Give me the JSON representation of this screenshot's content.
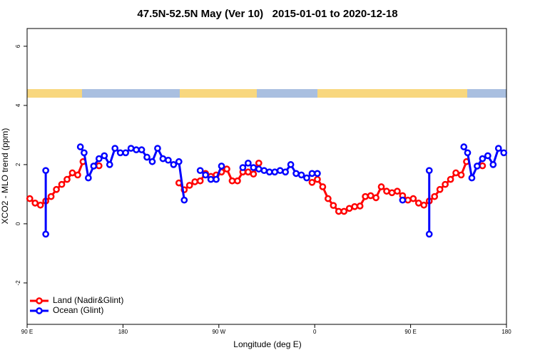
{
  "chart_data": {
    "type": "line",
    "title": "47.5N-52.5N May (Ver 10)   2015-01-01 to 2020-12-18",
    "x_label": "Longitude (deg E)",
    "y_label": "XCO2 - MLO trend (ppm)",
    "xlim": [
      90,
      540
    ],
    "xticks": [
      {
        "value": 90,
        "label": "90 E"
      },
      180,
      {
        "value": 270,
        "label": "90 W"
      },
      {
        "value": 360,
        "label": "0"
      },
      {
        "value": 450,
        "label": "90 E"
      },
      {
        "value": 540,
        "label": "180"
      }
    ],
    "ylim": [
      -3.4,
      6.6
    ],
    "yticks": [
      -2,
      0,
      2,
      4,
      6
    ],
    "legend": "bottom-left",
    "series": [
      {
        "name": "Land (Nadir&Glint)",
        "color": "#ff0000",
        "x": [
          92.5,
          97.5,
          102.5,
          107.5,
          112.5,
          117.5,
          122.5,
          127.5,
          132.5,
          137.5,
          142.5,
          null,
          157.5,
          null,
          232.5,
          237.5,
          242.5,
          247.5,
          252.5,
          257.5,
          262.5,
          267.5,
          272.5,
          277.5,
          282.5,
          287.5,
          292.5,
          297.5,
          302.5,
          307.5,
          null,
          357.5,
          362.5,
          367.5,
          372.5,
          377.5,
          382.5,
          387.5,
          392.5,
          397.5,
          402.5,
          407.5,
          412.5,
          417.5,
          422.5,
          427.5,
          432.5,
          437.5,
          442.5,
          447.5,
          452.5,
          457.5,
          462.5,
          467.5,
          472.5,
          477.5,
          482.5,
          487.5,
          492.5,
          497.5,
          502.5,
          null,
          517.5
        ],
        "values": [
          0.85,
          0.7,
          0.63,
          0.77,
          0.92,
          1.16,
          1.33,
          1.5,
          1.72,
          1.65,
          2.1,
          null,
          1.96,
          null,
          1.38,
          1.15,
          1.3,
          1.42,
          1.45,
          1.7,
          1.6,
          1.65,
          1.75,
          1.85,
          1.45,
          1.45,
          1.75,
          1.75,
          1.68,
          2.05,
          null,
          1.4,
          1.5,
          1.25,
          0.85,
          0.62,
          0.42,
          0.42,
          0.52,
          0.58,
          0.6,
          0.92,
          0.95,
          0.88,
          1.25,
          1.1,
          1.05,
          1.1,
          0.95,
          0.8,
          0.85,
          0.7,
          0.63,
          0.77,
          0.92,
          1.16,
          1.33,
          1.5,
          1.72,
          1.65,
          2.1,
          null,
          1.96
        ]
      },
      {
        "name": "Ocean (Glint)",
        "color": "#0000ff",
        "x": [
          107.5,
          107.5,
          null,
          140,
          143.5,
          147.5,
          152.5,
          157.5,
          162.5,
          167.5,
          172.5,
          177.5,
          182.5,
          187.5,
          192.5,
          197.5,
          202.5,
          207.5,
          212.5,
          217.5,
          222.5,
          227.5,
          232.5,
          237.5,
          null,
          252.5,
          257.5,
          262.5,
          267.5,
          272.5,
          null,
          292.5,
          297.5,
          302.5,
          307.5,
          312.5,
          317.5,
          322.5,
          327.5,
          332.5,
          337.5,
          342.5,
          347.5,
          352.5,
          357.5,
          362.5,
          null,
          442.5,
          null,
          467.5,
          467.5,
          null,
          500,
          503.5,
          507.5,
          512.5,
          517.5,
          522.5,
          527.5,
          532.5,
          537.5
        ],
        "values": [
          1.8,
          -0.35,
          null,
          2.6,
          2.4,
          1.55,
          1.95,
          2.2,
          2.3,
          2.0,
          2.55,
          2.4,
          2.4,
          2.55,
          2.5,
          2.5,
          2.25,
          2.1,
          2.55,
          2.2,
          2.15,
          2.0,
          2.1,
          0.8,
          null,
          1.8,
          1.65,
          1.5,
          1.5,
          1.95,
          null,
          1.9,
          2.05,
          1.9,
          1.85,
          1.8,
          1.75,
          1.75,
          1.8,
          1.75,
          2.0,
          1.7,
          1.65,
          1.55,
          1.7,
          1.7,
          null,
          0.8,
          null,
          1.8,
          -0.35,
          null,
          2.6,
          2.4,
          1.55,
          1.95,
          2.2,
          2.3,
          2.0,
          2.55,
          2.4
        ]
      }
    ]
  }
}
